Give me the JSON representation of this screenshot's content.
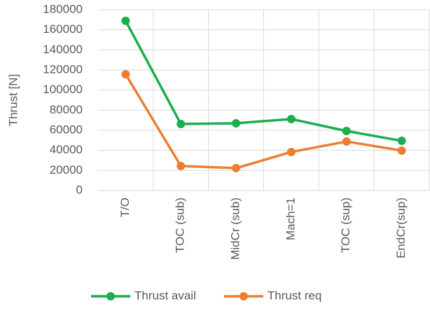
{
  "chart_data": {
    "type": "line",
    "y_label": "Thrust [N]",
    "categories": [
      "T/O",
      "TOC (sub)",
      "MidCr (sub)",
      "Mach=1",
      "TOC (sup)",
      "EndCr(sup)"
    ],
    "series": [
      {
        "name": "Thrust avail",
        "color": "#1aae4f",
        "values": [
          169000,
          66300,
          67000,
          71200,
          59300,
          49500
        ]
      },
      {
        "name": "Thrust req",
        "color": "#ed7d31",
        "values": [
          115800,
          24400,
          22300,
          38400,
          48800,
          39800
        ]
      }
    ],
    "ylim": [
      0,
      180000
    ],
    "yticks": [
      0,
      20000,
      40000,
      60000,
      80000,
      100000,
      120000,
      140000,
      160000,
      180000
    ],
    "grid": true,
    "legend": "bottom"
  }
}
